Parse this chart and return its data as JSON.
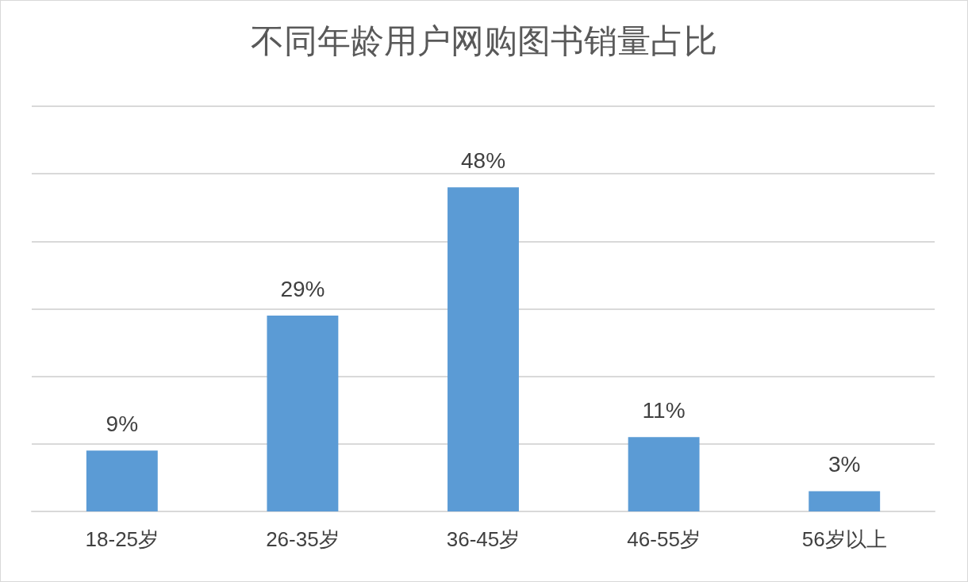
{
  "chart_data": {
    "type": "bar",
    "title": "不同年龄用户网购图书销量占比",
    "categories": [
      "18-25岁",
      "26-35岁",
      "36-45岁",
      "46-55岁",
      "56岁以上"
    ],
    "values": [
      9,
      29,
      48,
      11,
      3
    ],
    "value_labels": [
      "9%",
      "29%",
      "48%",
      "11%",
      "3%"
    ],
    "color": "#5b9bd5",
    "ylim": [
      0,
      60
    ],
    "yticks": [
      {
        "value": 0,
        "label": null
      },
      {
        "value": 10,
        "label": null
      },
      {
        "value": 20,
        "label": null
      },
      {
        "value": 30,
        "label": null
      },
      {
        "value": 40,
        "label": null
      },
      {
        "value": 50,
        "label": null
      },
      {
        "value": 60,
        "label": null
      }
    ],
    "grid": "y",
    "tick_labels": "x"
  }
}
